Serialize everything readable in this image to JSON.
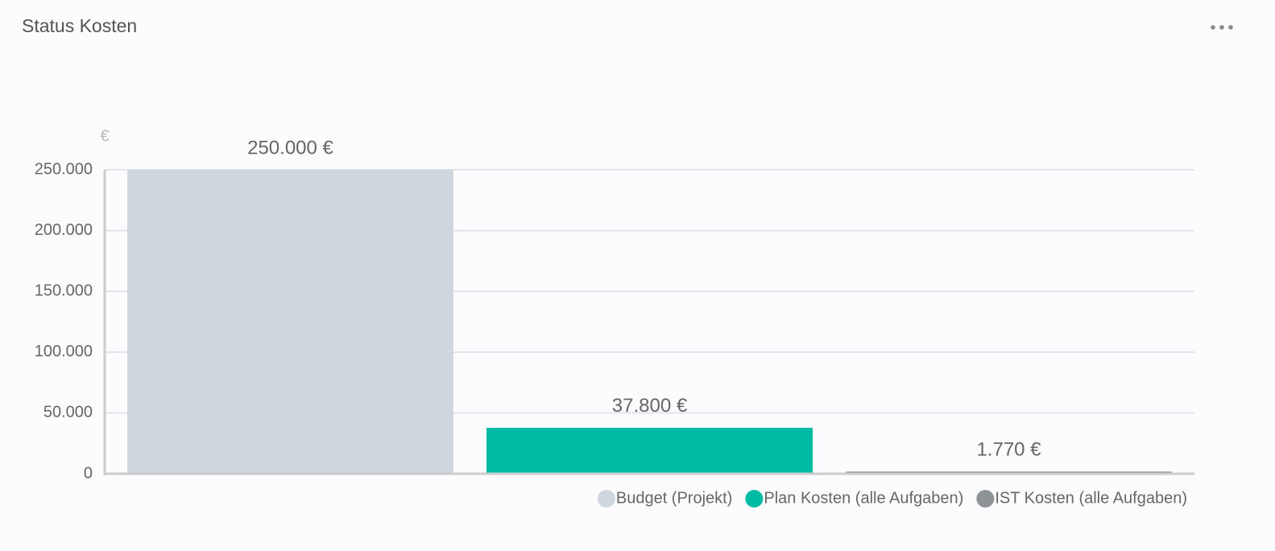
{
  "chart_data": {
    "type": "bar",
    "title": "Status Kosten",
    "y_label": "€",
    "categories": [
      null
    ],
    "series": [
      {
        "name": "Budget (Projekt)",
        "color": "#cfd6dd",
        "values": [
          250000
        ],
        "value_labels": [
          "250.000 €"
        ]
      },
      {
        "name": "Plan Kosten (alle Aufgaben)",
        "color": "#00bba4",
        "values": [
          37800
        ],
        "value_labels": [
          "37.800 €"
        ]
      },
      {
        "name": "IST Kosten (alle Aufgaben)",
        "color": "#8e9396",
        "values": [
          1770
        ],
        "value_labels": [
          "1.770 €"
        ]
      }
    ],
    "ylim": [
      0,
      250000
    ],
    "yticks": [
      0,
      {
        "value": 50000,
        "label": "50.000"
      },
      {
        "value": 100000,
        "label": "100.000"
      },
      {
        "value": 150000,
        "label": "150.000"
      },
      {
        "value": 200000,
        "label": "200.000"
      },
      {
        "value": 250000,
        "label": "250.000"
      }
    ],
    "grid": true,
    "legend": "bottom-right"
  }
}
